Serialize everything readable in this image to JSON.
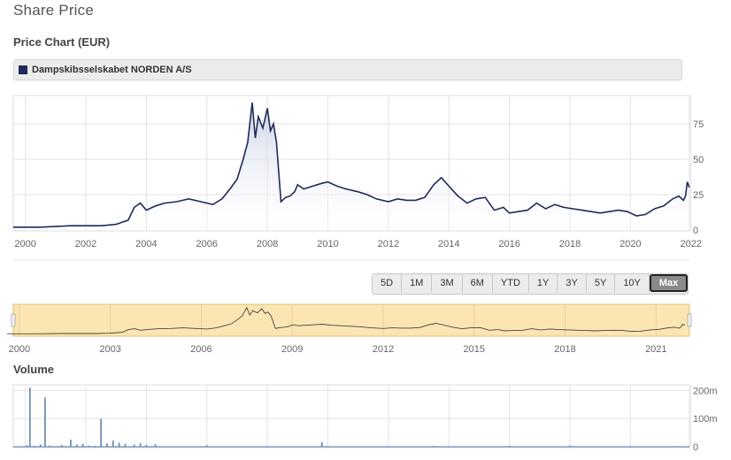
{
  "page": {
    "title": "Share Price",
    "chart_title": "Price Chart (EUR)",
    "legend_label": "Dampskibsselskabet NORDEN A/S",
    "volume_title": "Volume"
  },
  "colors": {
    "line": "#1f2a5c",
    "area_top": "#c5cfe3",
    "navigator_bg": "#fbe6b3",
    "navigator_border": "#e2c177",
    "volume_bar": "#6f8fb3",
    "grid": "#e3e3e3"
  },
  "range_buttons": [
    {
      "label": "5D",
      "active": false
    },
    {
      "label": "1M",
      "active": false
    },
    {
      "label": "3M",
      "active": false
    },
    {
      "label": "6M",
      "active": false
    },
    {
      "label": "YTD",
      "active": false
    },
    {
      "label": "1Y",
      "active": false
    },
    {
      "label": "3Y",
      "active": false
    },
    {
      "label": "5Y",
      "active": false
    },
    {
      "label": "10Y",
      "active": false
    },
    {
      "label": "Max",
      "active": true
    }
  ],
  "chart_data": [
    {
      "type": "area",
      "series": [
        {
          "name": "Dampskibsselskabet NORDEN A/S"
        }
      ],
      "x_range": [
        1999.6,
        2021.95
      ],
      "ylim": [
        0,
        95
      ],
      "yticks": [
        0,
        25,
        50,
        75
      ],
      "yticklabels": [
        "0",
        "25",
        "50",
        "75"
      ],
      "xticks": [
        2000,
        2002,
        2004,
        2006,
        2008,
        2010,
        2012,
        2014,
        2016,
        2018,
        2020,
        2022
      ],
      "xticklabels": [
        "2000",
        "2002",
        "2004",
        "2006",
        "2008",
        "2010",
        "2012",
        "2014",
        "2016",
        "2018",
        "2020",
        "2022"
      ],
      "x": [
        1999.6,
        2000.5,
        2001.5,
        2002.5,
        2003.0,
        2003.4,
        2003.6,
        2003.8,
        2004.0,
        2004.3,
        2004.6,
        2005.0,
        2005.4,
        2005.8,
        2006.2,
        2006.5,
        2006.8,
        2007.0,
        2007.2,
        2007.35,
        2007.5,
        2007.6,
        2007.7,
        2007.85,
        2008.0,
        2008.1,
        2008.2,
        2008.3,
        2008.45,
        2008.6,
        2008.75,
        2008.9,
        2009.0,
        2009.2,
        2009.5,
        2009.8,
        2010.0,
        2010.3,
        2010.6,
        2011.0,
        2011.3,
        2011.6,
        2012.0,
        2012.3,
        2012.6,
        2012.9,
        2013.2,
        2013.5,
        2013.75,
        2014.0,
        2014.3,
        2014.6,
        2014.9,
        2015.2,
        2015.5,
        2015.8,
        2016.0,
        2016.3,
        2016.6,
        2016.9,
        2017.2,
        2017.5,
        2017.8,
        2018.1,
        2018.4,
        2018.7,
        2019.0,
        2019.3,
        2019.6,
        2019.9,
        2020.2,
        2020.5,
        2020.8,
        2021.1,
        2021.4,
        2021.6,
        2021.75,
        2021.82,
        2021.88,
        2021.95
      ],
      "y": [
        2,
        2,
        3,
        3,
        4,
        7,
        16,
        19,
        14,
        17,
        19,
        20,
        22,
        20,
        18,
        22,
        30,
        36,
        50,
        62,
        90,
        65,
        80,
        72,
        86,
        70,
        75,
        62,
        20,
        23,
        24,
        27,
        32,
        29,
        31,
        33,
        34,
        31,
        29,
        27,
        25,
        22,
        20,
        22,
        21,
        21,
        23,
        32,
        37,
        31,
        24,
        19,
        22,
        23,
        14,
        16,
        12,
        13,
        14,
        19,
        15,
        18,
        16,
        15,
        14,
        13,
        12,
        13,
        14,
        13,
        10,
        11,
        15,
        17,
        22,
        24,
        21,
        24,
        34,
        30
      ]
    },
    {
      "type": "line",
      "series": [
        {
          "name": "Dampskibsselskabet NORDEN A/S"
        }
      ],
      "x_range": [
        1999.8,
        2022.1
      ],
      "xticks": [
        2000,
        2003,
        2006,
        2009,
        2012,
        2015,
        2018,
        2021
      ],
      "xticklabels": [
        "2000",
        "2003",
        "2006",
        "2009",
        "2012",
        "2015",
        "2018",
        "2021"
      ]
    },
    {
      "type": "bar",
      "series": [
        {
          "name": "Volume"
        }
      ],
      "ylim": [
        0,
        220
      ],
      "yticks": [
        0,
        100,
        200
      ],
      "yticklabels": [
        "0",
        "100m",
        "200m"
      ],
      "x": [
        2000.05,
        2000.15,
        2000.3,
        2000.5,
        2000.65,
        2000.8,
        2001.2,
        2001.5,
        2001.7,
        2001.9,
        2002.1,
        2002.3,
        2002.5,
        2002.7,
        2002.9,
        2003.1,
        2003.3,
        2003.6,
        2003.8,
        2004.0,
        2004.3,
        2006.0,
        2009.8,
        2013.5,
        2016.0,
        2018.0,
        2021.6
      ],
      "y": [
        5,
        210,
        3,
        8,
        175,
        4,
        6,
        25,
        8,
        10,
        4,
        3,
        100,
        12,
        22,
        14,
        10,
        8,
        13,
        6,
        9,
        5,
        16,
        3,
        3,
        4,
        2
      ]
    }
  ]
}
